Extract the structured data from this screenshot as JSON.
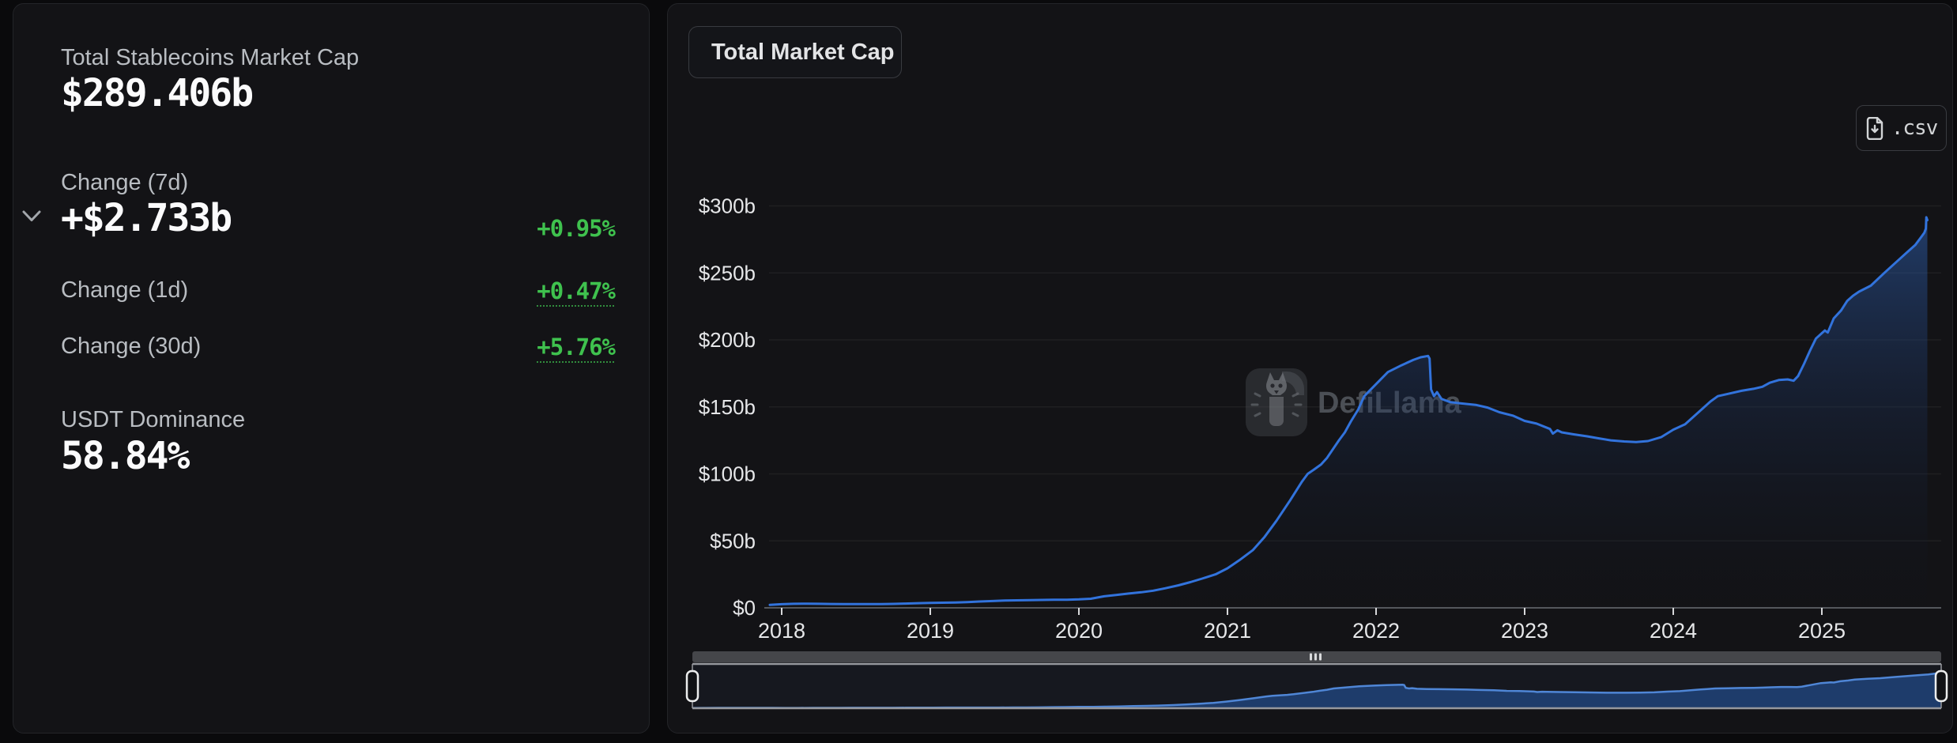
{
  "colors": {
    "positive_green": "#3fc24e",
    "chart_line_blue": "#3273dc",
    "card_background": "#131316",
    "axis_text": "#e6e7e9",
    "grid_line": "#1d1f23",
    "watermark_gray": "#5a5e65"
  },
  "left_card": {
    "title": "Total Stablecoins Market Cap",
    "total_value": "$289.406b",
    "change_7d": {
      "label": "Change (7d)",
      "value": "+$2.733b",
      "percent": "+0.95%"
    },
    "change_1d": {
      "label": "Change (1d)",
      "percent": "+0.47%"
    },
    "change_30d": {
      "label": "Change (30d)",
      "percent": "+5.76%"
    },
    "dominance": {
      "label": "USDT Dominance",
      "value": "58.84%"
    }
  },
  "right_card": {
    "metric_dropdown": {
      "label": "Total Market Cap"
    },
    "csv_button": {
      "label": ".csv"
    },
    "watermark": "DefiLlama"
  },
  "chart_data": {
    "type": "area",
    "title": "Total Market Cap",
    "xlabel": "",
    "ylabel": "",
    "ylim": [
      0,
      300
    ],
    "grid": true,
    "legend_position": "none",
    "y_ticks": [
      {
        "label": "$300b",
        "value": 300
      },
      {
        "label": "$250b",
        "value": 250
      },
      {
        "label": "$200b",
        "value": 200
      },
      {
        "label": "$150b",
        "value": 150
      },
      {
        "label": "$100b",
        "value": 100
      },
      {
        "label": "$50b",
        "value": 50
      },
      {
        "label": "$0",
        "value": 0
      }
    ],
    "x_ticks": [
      {
        "label": "2018",
        "year": 2018
      },
      {
        "label": "2019",
        "year": 2019
      },
      {
        "label": "2020",
        "year": 2020
      },
      {
        "label": "2021",
        "year": 2021
      },
      {
        "label": "2022",
        "year": 2022
      },
      {
        "label": "2023",
        "year": 2023
      },
      {
        "label": "2024",
        "year": 2024
      },
      {
        "label": "2025",
        "year": 2025
      }
    ],
    "series": [
      {
        "name": "Total Stablecoins Market Cap ($b)",
        "points": [
          [
            2017.92,
            2.2
          ],
          [
            2018.0,
            2.7
          ],
          [
            2018.08,
            3.0
          ],
          [
            2018.17,
            3.1
          ],
          [
            2018.25,
            3.0
          ],
          [
            2018.33,
            2.9
          ],
          [
            2018.42,
            2.85
          ],
          [
            2018.5,
            2.8
          ],
          [
            2018.58,
            2.8
          ],
          [
            2018.67,
            2.85
          ],
          [
            2018.75,
            2.95
          ],
          [
            2018.83,
            3.2
          ],
          [
            2018.92,
            3.5
          ],
          [
            2019.0,
            3.7
          ],
          [
            2019.08,
            3.85
          ],
          [
            2019.17,
            4.0
          ],
          [
            2019.25,
            4.3
          ],
          [
            2019.33,
            4.7
          ],
          [
            2019.42,
            5.1
          ],
          [
            2019.5,
            5.4
          ],
          [
            2019.58,
            5.6
          ],
          [
            2019.67,
            5.8
          ],
          [
            2019.75,
            5.9
          ],
          [
            2019.83,
            6.0
          ],
          [
            2019.92,
            6.1
          ],
          [
            2020.0,
            6.3
          ],
          [
            2020.08,
            6.8
          ],
          [
            2020.17,
            8.6
          ],
          [
            2020.25,
            9.6
          ],
          [
            2020.33,
            10.6
          ],
          [
            2020.42,
            11.6
          ],
          [
            2020.5,
            12.8
          ],
          [
            2020.58,
            14.6
          ],
          [
            2020.67,
            16.8
          ],
          [
            2020.75,
            19.2
          ],
          [
            2020.83,
            21.8
          ],
          [
            2020.92,
            25.0
          ],
          [
            2021.0,
            29.5
          ],
          [
            2021.08,
            35.5
          ],
          [
            2021.17,
            43
          ],
          [
            2021.25,
            53
          ],
          [
            2021.33,
            65
          ],
          [
            2021.42,
            80
          ],
          [
            2021.5,
            94
          ],
          [
            2021.54,
            100
          ],
          [
            2021.58,
            103
          ],
          [
            2021.63,
            107
          ],
          [
            2021.67,
            112
          ],
          [
            2021.75,
            125
          ],
          [
            2021.79,
            131
          ],
          [
            2021.83,
            139
          ],
          [
            2021.88,
            148
          ],
          [
            2021.92,
            158
          ],
          [
            2022.0,
            167
          ],
          [
            2022.08,
            176
          ],
          [
            2022.17,
            181
          ],
          [
            2022.25,
            185
          ],
          [
            2022.3,
            187
          ],
          [
            2022.35,
            188
          ],
          [
            2022.36,
            186
          ],
          [
            2022.37,
            163
          ],
          [
            2022.39,
            158
          ],
          [
            2022.41,
            161
          ],
          [
            2022.44,
            156
          ],
          [
            2022.5,
            153.5
          ],
          [
            2022.58,
            152.5
          ],
          [
            2022.67,
            151.5
          ],
          [
            2022.75,
            149.5
          ],
          [
            2022.83,
            146
          ],
          [
            2022.92,
            143.5
          ],
          [
            2023.0,
            139.5
          ],
          [
            2023.08,
            137.5
          ],
          [
            2023.17,
            133.5
          ],
          [
            2023.19,
            130
          ],
          [
            2023.22,
            132.5
          ],
          [
            2023.25,
            131
          ],
          [
            2023.33,
            129.5
          ],
          [
            2023.42,
            128
          ],
          [
            2023.5,
            126.5
          ],
          [
            2023.58,
            125
          ],
          [
            2023.67,
            124.2
          ],
          [
            2023.75,
            123.8
          ],
          [
            2023.83,
            124.5
          ],
          [
            2023.92,
            127.5
          ],
          [
            2024.0,
            133
          ],
          [
            2024.08,
            137
          ],
          [
            2024.17,
            146
          ],
          [
            2024.21,
            150
          ],
          [
            2024.25,
            154
          ],
          [
            2024.3,
            158
          ],
          [
            2024.38,
            160
          ],
          [
            2024.46,
            162
          ],
          [
            2024.54,
            163.5
          ],
          [
            2024.6,
            165
          ],
          [
            2024.65,
            168
          ],
          [
            2024.71,
            170
          ],
          [
            2024.77,
            170.5
          ],
          [
            2024.81,
            169.5
          ],
          [
            2024.84,
            173
          ],
          [
            2024.88,
            182
          ],
          [
            2024.92,
            192
          ],
          [
            2024.96,
            201
          ],
          [
            2025.0,
            205
          ],
          [
            2025.02,
            207
          ],
          [
            2025.04,
            205.5
          ],
          [
            2025.08,
            216
          ],
          [
            2025.13,
            222
          ],
          [
            2025.17,
            229
          ],
          [
            2025.21,
            233
          ],
          [
            2025.25,
            236
          ],
          [
            2025.33,
            240.5
          ],
          [
            2025.42,
            250
          ],
          [
            2025.5,
            258
          ],
          [
            2025.58,
            266
          ],
          [
            2025.63,
            271
          ],
          [
            2025.67,
            277
          ],
          [
            2025.69,
            280
          ],
          [
            2025.7,
            283
          ],
          [
            2025.703,
            291.5
          ],
          [
            2025.71,
            289.4
          ]
        ]
      }
    ]
  }
}
